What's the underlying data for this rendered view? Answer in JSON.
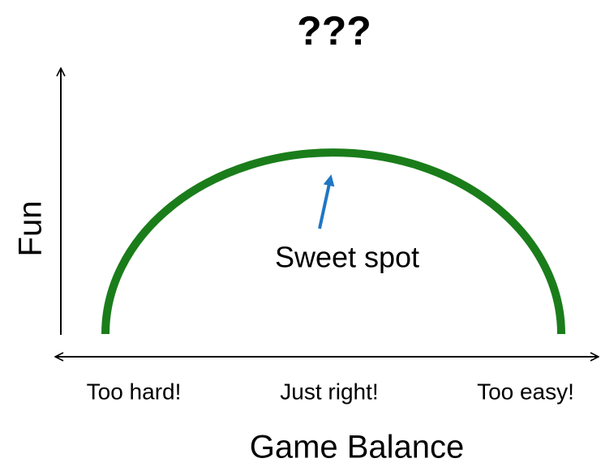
{
  "title": "???",
  "y_axis_label": "Fun",
  "x_axis_label": "Game Balance",
  "x_labels": [
    "Too hard!",
    "Just right!",
    "Too easy!"
  ],
  "annotation": "Sweet spot"
}
